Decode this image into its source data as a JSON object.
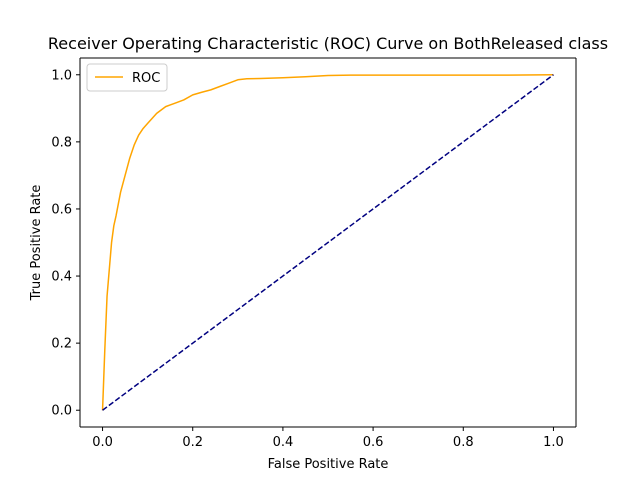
{
  "chart_data": {
    "type": "line",
    "title": "Receiver Operating Characteristic (ROC) Curve on BothReleased class",
    "xlabel": "False Positive Rate",
    "ylabel": "True Positive Rate",
    "xlim": [
      -0.05,
      1.05
    ],
    "ylim": [
      -0.05,
      1.05
    ],
    "xticks": [
      0.0,
      0.2,
      0.4,
      0.6,
      0.8,
      1.0
    ],
    "yticks": [
      0.0,
      0.2,
      0.4,
      0.6,
      0.8,
      1.0
    ],
    "xtick_labels": [
      "0.0",
      "0.2",
      "0.4",
      "0.6",
      "0.8",
      "1.0"
    ],
    "ytick_labels": [
      "0.0",
      "0.2",
      "0.4",
      "0.6",
      "0.8",
      "1.0"
    ],
    "grid": false,
    "legend": {
      "placement": "top-left",
      "entries": [
        "ROC"
      ]
    },
    "series": [
      {
        "name": "ROC",
        "color": "#ffa500",
        "style": "solid",
        "x": [
          0.0,
          0.005,
          0.01,
          0.015,
          0.02,
          0.025,
          0.03,
          0.04,
          0.05,
          0.06,
          0.07,
          0.08,
          0.09,
          0.1,
          0.11,
          0.12,
          0.13,
          0.14,
          0.15,
          0.16,
          0.18,
          0.2,
          0.22,
          0.24,
          0.26,
          0.28,
          0.3,
          0.32,
          0.35,
          0.4,
          0.45,
          0.5,
          0.55,
          0.6,
          0.7,
          0.8,
          0.9,
          1.0
        ],
        "y": [
          0.0,
          0.18,
          0.34,
          0.42,
          0.5,
          0.55,
          0.58,
          0.65,
          0.7,
          0.75,
          0.79,
          0.82,
          0.84,
          0.855,
          0.87,
          0.885,
          0.895,
          0.905,
          0.91,
          0.915,
          0.925,
          0.94,
          0.948,
          0.955,
          0.965,
          0.975,
          0.985,
          0.988,
          0.989,
          0.991,
          0.994,
          0.998,
          0.999,
          0.999,
          0.999,
          0.999,
          0.999,
          1.0
        ]
      },
      {
        "color": "#000080",
        "style": "dashed",
        "x": [
          0.0,
          1.0
        ],
        "y": [
          0.0,
          1.0
        ]
      }
    ]
  }
}
